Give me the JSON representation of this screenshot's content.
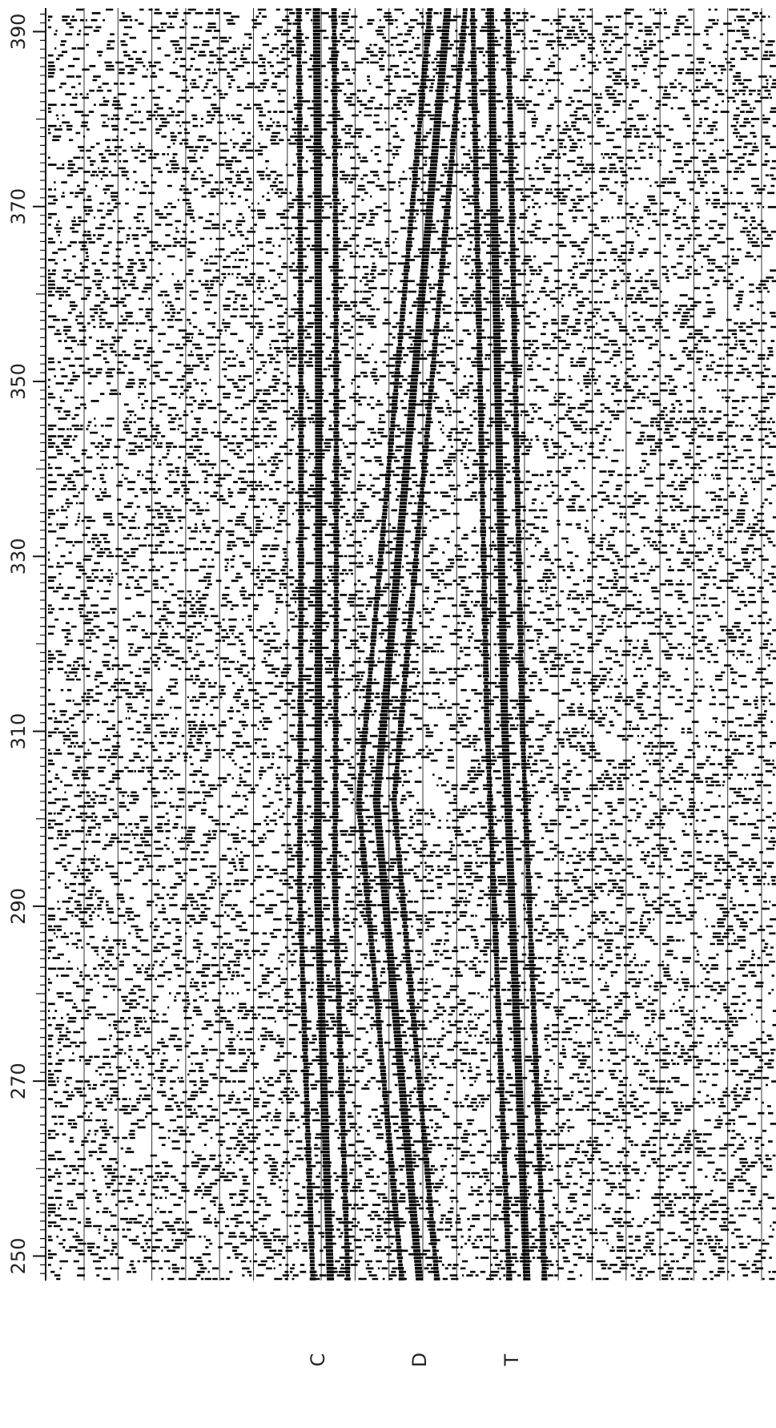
{
  "axis": {
    "range": [
      247.2,
      392.7
    ],
    "ticks": [
      250,
      270,
      290,
      310,
      330,
      350,
      370,
      390
    ]
  },
  "horizons": [
    "C",
    "D",
    "T"
  ]
}
